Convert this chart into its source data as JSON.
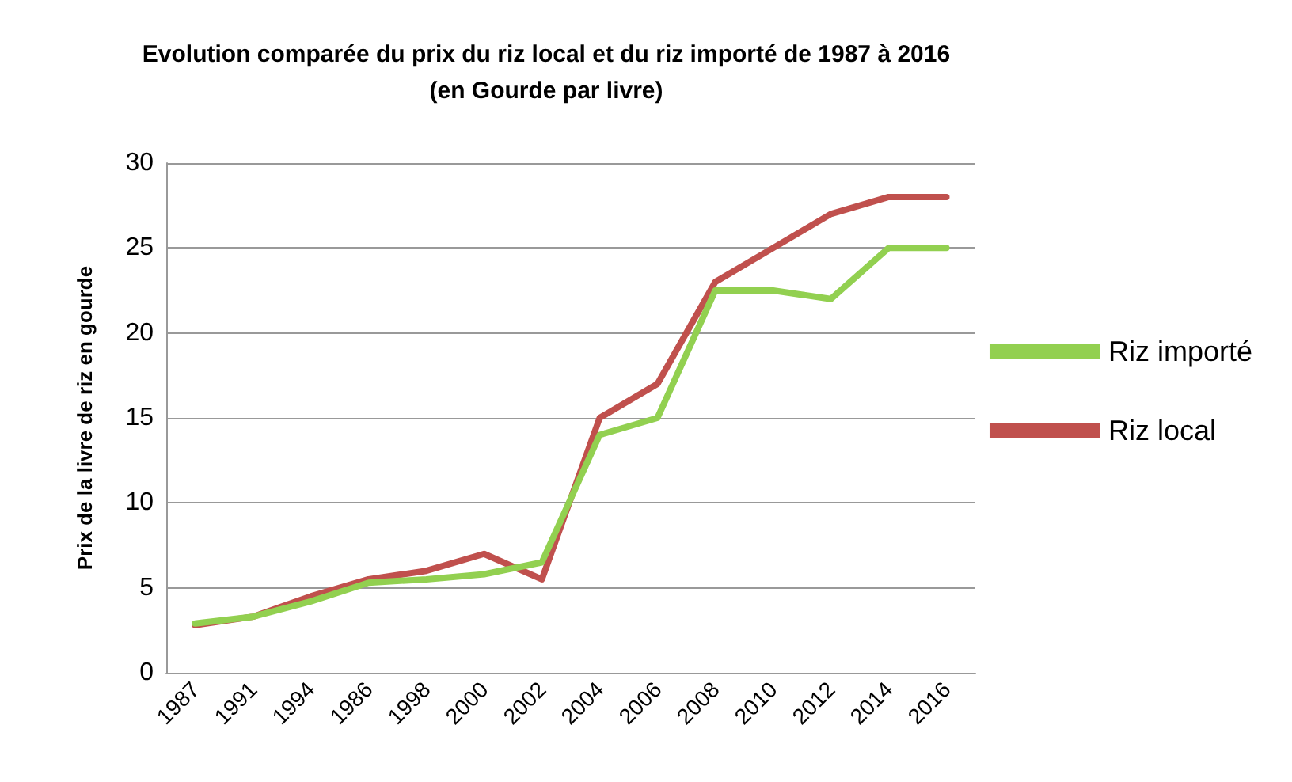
{
  "chart_data": {
    "type": "line",
    "title": "Evolution comparée du prix du riz local et du riz importé de 1987 à 2016",
    "subtitle": "(en Gourde par livre)",
    "ylabel": "Prix de la livre de riz en gourde",
    "categories": [
      "1987",
      "1991",
      "1994",
      "1986",
      "1998",
      "2000",
      "2002",
      "2004",
      "2006",
      "2008",
      "2010",
      "2012",
      "2014",
      "2016"
    ],
    "series": [
      {
        "name": "Riz importé",
        "color": "#92d050",
        "values": [
          2.9,
          3.3,
          4.2,
          5.3,
          5.5,
          5.8,
          6.5,
          14,
          15,
          22.5,
          22.5,
          22,
          25,
          25
        ]
      },
      {
        "name": "Riz local",
        "color": "#c0504d",
        "values": [
          2.8,
          3.3,
          4.5,
          5.5,
          6,
          7,
          5.5,
          15,
          17,
          23,
          25,
          27,
          28,
          28
        ]
      }
    ],
    "ylim": [
      0,
      30
    ],
    "yticks": [
      0,
      5,
      10,
      15,
      20,
      25,
      30
    ],
    "grid": "y",
    "legend": "right",
    "marker": "none",
    "line_style": "solid"
  }
}
